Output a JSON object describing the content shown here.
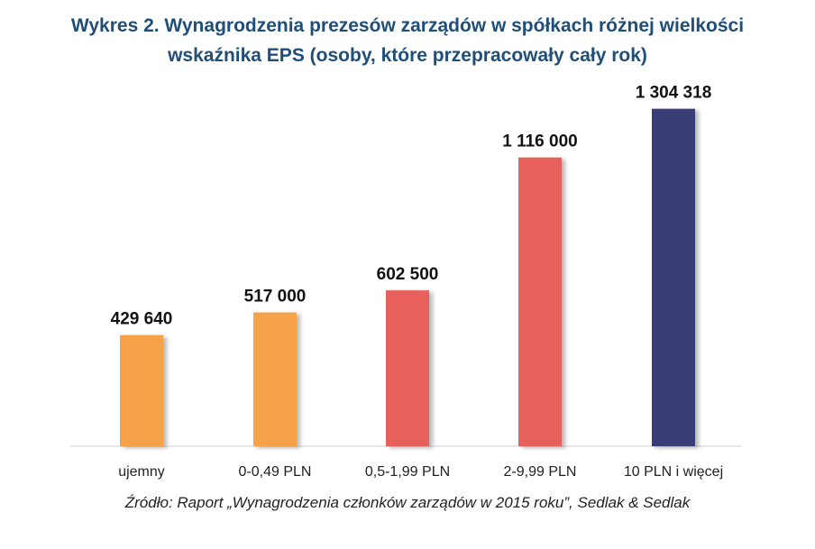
{
  "title_lines": [
    "Wykres 2. Wynagrodzenia prezesów zarządów w spółkach różnej wielkości",
    "wskaźnika EPS (osoby, które przepracowały cały rok)"
  ],
  "source": "Źródło: Raport „Wynagrodzenia członków zarządów w 2015 roku”, Sedlak & Sedlak",
  "chart_data": {
    "type": "bar",
    "categories": [
      "ujemny",
      "0-0,49 PLN",
      "0,5-1,99 PLN",
      "2-9,99 PLN",
      "10 PLN i więcej"
    ],
    "values": [
      429640,
      517000,
      602500,
      1116000,
      1304318
    ],
    "data_labels": [
      "429 640",
      "517 000",
      "602 500",
      "1 116 000",
      "1 304 318"
    ],
    "bar_colors": [
      "#f5a24a",
      "#f5a24a",
      "#e8605b",
      "#e8605b",
      "#383e78"
    ],
    "ylim": [
      0,
      1500000
    ],
    "grid": false,
    "legend": "none",
    "xlabel": "",
    "ylabel": ""
  }
}
